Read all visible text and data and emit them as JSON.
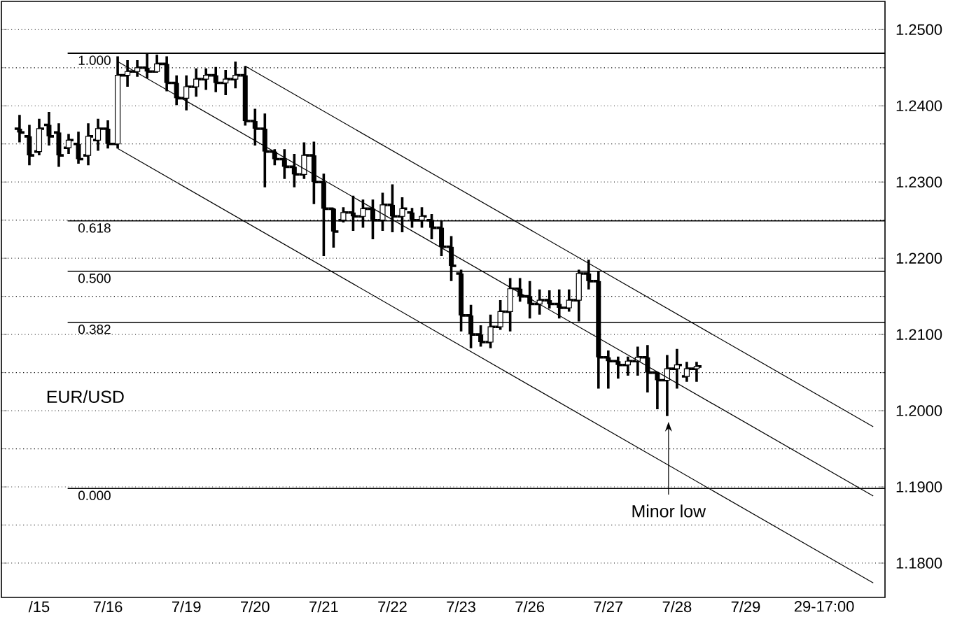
{
  "chart_data": {
    "type": "candlestick",
    "color": "#000000",
    "categories": [
      null,
      null,
      "/15",
      null,
      null,
      null,
      null,
      null,
      null,
      "7/16",
      null,
      null,
      null,
      null,
      null,
      null,
      null,
      "7/19",
      null,
      null,
      null,
      null,
      null,
      null,
      "7/20",
      null,
      null,
      null,
      null,
      null,
      null,
      "7/21",
      null,
      null,
      null,
      null,
      null,
      null,
      "7/22",
      null,
      null,
      null,
      null,
      null,
      null,
      "7/23",
      null,
      null,
      null,
      null,
      null,
      null,
      "7/26",
      null,
      null,
      null,
      null,
      null,
      null,
      null,
      "7/27",
      null,
      null,
      null,
      null,
      null,
      null,
      "7/28",
      null,
      null,
      null,
      null,
      null,
      null,
      "7/29",
      null,
      null,
      null,
      null,
      null,
      null,
      null,
      "29-17:00",
      null,
      null,
      null,
      null,
      null
    ],
    "ohlc": [
      [
        1.237,
        1.2388,
        1.2352,
        1.2365
      ],
      [
        1.236,
        1.2375,
        1.2322,
        1.2335
      ],
      [
        1.234,
        1.2383,
        1.2335,
        1.237
      ],
      [
        1.2375,
        1.2392,
        1.2348,
        1.236
      ],
      [
        1.2365,
        1.2377,
        1.232,
        1.2335
      ],
      [
        1.2345,
        1.2363,
        1.2337,
        1.2355
      ],
      [
        1.235,
        1.2366,
        1.2324,
        1.233
      ],
      [
        1.2335,
        1.2377,
        1.2322,
        1.236
      ],
      [
        1.2355,
        1.2383,
        1.2341,
        1.237
      ],
      [
        1.237,
        1.2381,
        1.2344,
        1.235
      ],
      [
        1.235,
        1.2465,
        1.2344,
        1.244
      ],
      [
        1.244,
        1.246,
        1.2425,
        1.2445
      ],
      [
        1.2445,
        1.246,
        1.2438,
        1.245
      ],
      [
        1.245,
        1.2469,
        1.2436,
        1.2445
      ],
      [
        1.2445,
        1.2467,
        1.2445,
        1.2455
      ],
      [
        1.2455,
        1.2465,
        1.2419,
        1.243
      ],
      [
        1.243,
        1.244,
        1.2401,
        1.241
      ],
      [
        1.241,
        1.244,
        1.2394,
        1.2425
      ],
      [
        1.2425,
        1.2449,
        1.2412,
        1.2435
      ],
      [
        1.2435,
        1.2449,
        1.2421,
        1.244
      ],
      [
        1.244,
        1.2451,
        1.2418,
        1.243
      ],
      [
        1.243,
        1.2447,
        1.2414,
        1.2435
      ],
      [
        1.2435,
        1.2458,
        1.2423,
        1.244
      ],
      [
        1.244,
        1.2452,
        1.2374,
        1.238
      ],
      [
        1.238,
        1.2396,
        1.2348,
        1.237
      ],
      [
        1.237,
        1.239,
        1.2293,
        1.234
      ],
      [
        1.234,
        1.2343,
        1.2322,
        1.233
      ],
      [
        1.233,
        1.2343,
        1.2304,
        1.232
      ],
      [
        1.232,
        1.2337,
        1.2293,
        1.231
      ],
      [
        1.231,
        1.2352,
        1.2304,
        1.2335
      ],
      [
        1.2335,
        1.2353,
        1.2271,
        1.23
      ],
      [
        1.23,
        1.2311,
        1.2203,
        1.2265
      ],
      [
        1.2265,
        1.2266,
        1.2214,
        1.2235
      ],
      [
        1.225,
        1.2267,
        1.2247,
        1.226
      ],
      [
        1.226,
        1.2282,
        1.2236,
        1.2255
      ],
      [
        1.2255,
        1.2277,
        1.224,
        1.2265
      ],
      [
        1.2265,
        1.2277,
        1.2225,
        1.225
      ],
      [
        1.225,
        1.2286,
        1.2236,
        1.227
      ],
      [
        1.227,
        1.2297,
        1.2234,
        1.2255
      ],
      [
        1.2255,
        1.228,
        1.2234,
        1.2265
      ],
      [
        1.226,
        1.2266,
        1.224,
        1.225
      ],
      [
        1.225,
        1.2267,
        1.224,
        1.2255
      ],
      [
        1.225,
        1.2258,
        1.2225,
        1.224
      ],
      [
        1.224,
        1.2249,
        1.2203,
        1.2215
      ],
      [
        1.2215,
        1.2229,
        1.217,
        1.219
      ],
      [
        1.218,
        1.2185,
        1.2104,
        1.2125
      ],
      [
        1.2125,
        1.2139,
        1.2082,
        1.21
      ],
      [
        1.21,
        1.2112,
        1.2084,
        1.209
      ],
      [
        1.209,
        1.2126,
        1.2082,
        1.211
      ],
      [
        1.211,
        1.2145,
        1.2106,
        1.213
      ],
      [
        1.213,
        1.2174,
        1.2104,
        1.216
      ],
      [
        1.216,
        1.2174,
        1.2143,
        1.215
      ],
      [
        1.215,
        1.217,
        1.2121,
        1.214
      ],
      [
        1.214,
        1.2159,
        1.2126,
        1.2145
      ],
      [
        1.2145,
        1.2158,
        1.2134,
        1.214
      ],
      [
        1.214,
        1.2159,
        1.2121,
        1.2135
      ],
      [
        1.2135,
        1.2159,
        1.213,
        1.2145
      ],
      [
        1.2145,
        1.2185,
        1.2117,
        1.218
      ],
      [
        1.218,
        1.2198,
        1.2159,
        1.217
      ],
      [
        1.217,
        1.2183,
        1.2029,
        1.207
      ],
      [
        1.207,
        1.2079,
        1.2029,
        1.2065
      ],
      [
        1.2065,
        1.2071,
        1.2042,
        1.206
      ],
      [
        1.206,
        1.2071,
        1.2046,
        1.2065
      ],
      [
        1.2065,
        1.2084,
        1.2046,
        1.207
      ],
      [
        1.207,
        1.2086,
        1.2024,
        1.205
      ],
      [
        1.205,
        1.2051,
        1.2002,
        1.204
      ],
      [
        1.204,
        1.2073,
        1.1993,
        1.2055
      ],
      [
        1.2055,
        1.2081,
        1.2029,
        1.206
      ],
      [
        1.2045,
        1.2064,
        1.2038,
        1.2055
      ],
      [
        1.2055,
        1.2064,
        1.2038,
        1.2058
      ],
      null,
      null,
      null,
      null,
      null,
      null,
      null,
      null,
      null,
      null,
      null,
      null,
      null,
      null,
      null,
      null,
      null,
      null
    ],
    "series": [
      {
        "type": "line",
        "color": "#000000",
        "values": [
          null,
          null,
          null,
          null,
          null,
          null,
          null,
          null,
          null,
          null,
          null,
          null,
          null,
          null,
          null,
          null,
          null,
          null,
          null,
          null,
          null,
          null,
          null,
          1.2452,
          null,
          null,
          null,
          null,
          null,
          null,
          null,
          null,
          null,
          null,
          null,
          null,
          null,
          null,
          null,
          null,
          null,
          null,
          null,
          null,
          null,
          null,
          null,
          null,
          null,
          null,
          null,
          null,
          null,
          null,
          null,
          null,
          null,
          null,
          null,
          null,
          null,
          null,
          null,
          null,
          null,
          null,
          null,
          null,
          null,
          null,
          null,
          null,
          null,
          null,
          null,
          null,
          null,
          null,
          null,
          null,
          null,
          null,
          null,
          null,
          null,
          null,
          null,
          1.1979
        ]
      },
      {
        "type": "line",
        "color": "#000000",
        "values": [
          null,
          null,
          null,
          null,
          null,
          null,
          null,
          null,
          null,
          null,
          1.2458,
          null,
          null,
          null,
          null,
          null,
          null,
          null,
          null,
          null,
          null,
          null,
          null,
          null,
          null,
          null,
          null,
          null,
          null,
          null,
          null,
          null,
          null,
          null,
          null,
          null,
          null,
          null,
          null,
          null,
          null,
          null,
          null,
          null,
          null,
          null,
          null,
          null,
          null,
          null,
          null,
          null,
          null,
          null,
          null,
          null,
          null,
          null,
          null,
          null,
          null,
          null,
          null,
          null,
          null,
          null,
          null,
          null,
          null,
          null,
          null,
          null,
          null,
          null,
          null,
          null,
          null,
          null,
          null,
          null,
          null,
          null,
          null,
          null,
          null,
          null,
          null,
          1.1888
        ]
      },
      {
        "type": "line",
        "color": "#000000",
        "values": [
          null,
          null,
          null,
          null,
          null,
          null,
          null,
          null,
          null,
          null,
          1.2344,
          null,
          null,
          null,
          null,
          null,
          null,
          null,
          null,
          null,
          null,
          null,
          null,
          null,
          null,
          null,
          null,
          null,
          null,
          null,
          null,
          null,
          null,
          null,
          null,
          null,
          null,
          null,
          null,
          null,
          null,
          null,
          null,
          null,
          null,
          null,
          null,
          null,
          null,
          null,
          null,
          null,
          null,
          null,
          null,
          null,
          null,
          null,
          null,
          null,
          null,
          null,
          null,
          null,
          null,
          null,
          null,
          null,
          null,
          null,
          null,
          null,
          null,
          null,
          null,
          null,
          null,
          null,
          null,
          null,
          null,
          null,
          null,
          null,
          null,
          null,
          null,
          1.1774
        ]
      }
    ],
    "ref_lines": [
      {
        "axis": "y",
        "value": 1.2469,
        "color": "#000000"
      },
      {
        "axis": "y",
        "value": 1.2249,
        "color": "#000000"
      },
      {
        "axis": "y",
        "value": 1.2183,
        "color": "#000000"
      },
      {
        "axis": "y",
        "value": 1.2116,
        "color": "#000000"
      },
      {
        "axis": "y",
        "value": 1.1898,
        "color": "#000000"
      }
    ],
    "annotations": [
      "EUR/USD",
      {
        "text": "1.000",
        "y": 1.2469
      },
      {
        "text": "0.618",
        "y": 1.2249
      },
      {
        "text": "0.500",
        "y": 1.2183
      },
      {
        "text": "0.382",
        "y": 1.2116
      },
      {
        "text": "0.000",
        "y": 1.1898
      },
      "Minor low"
    ],
    "ylim": [
      1.1755,
      1.2537
    ],
    "yticks": [
      {
        "value": 1.18,
        "label": "1.1800"
      },
      {
        "value": 1.19,
        "label": "1.1900"
      },
      {
        "value": 1.2,
        "label": "1.2000"
      },
      {
        "value": 1.21,
        "label": "1.2100"
      },
      {
        "value": 1.22,
        "label": "1.2200"
      },
      {
        "value": 1.23,
        "label": "1.2300"
      },
      {
        "value": 1.24,
        "label": "1.2400"
      },
      {
        "value": 1.25,
        "label": "1.2500"
      }
    ],
    "grid": "y"
  }
}
